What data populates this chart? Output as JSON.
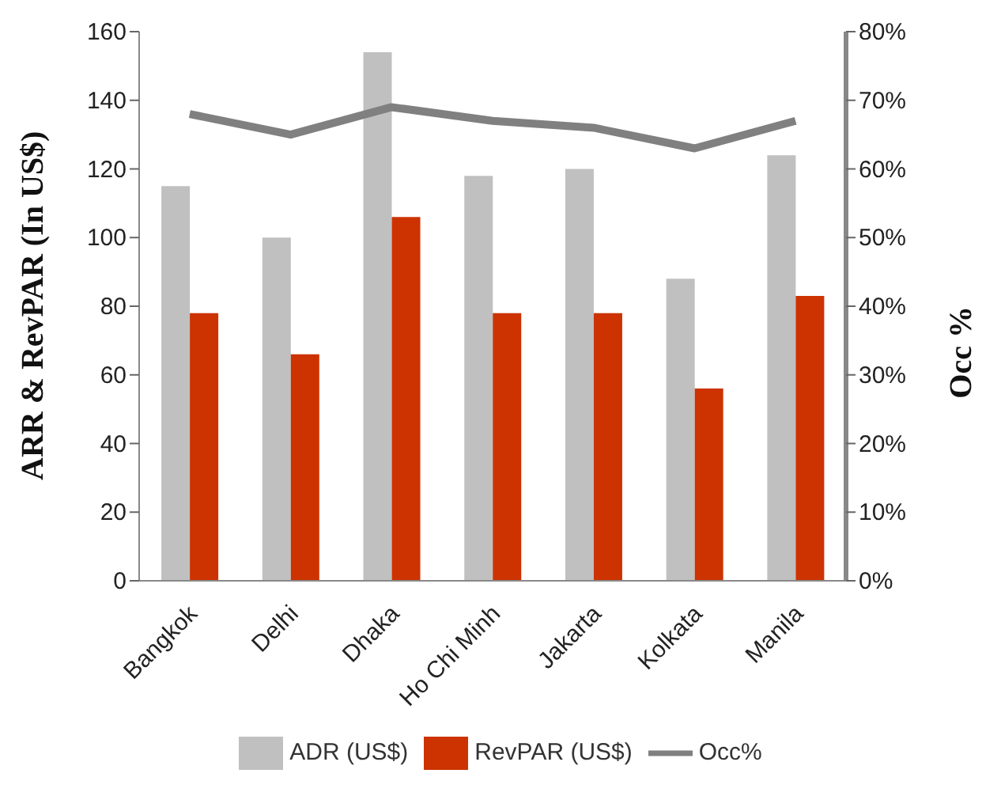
{
  "chart_data": {
    "type": "bar",
    "ylabel": "ARR & RevPAR (In US$)",
    "y2label": "Occ %",
    "categories": [
      "Bangkok",
      "Delhi",
      "Dhaka",
      "Ho Chi Minh",
      "Jakarta",
      "Kolkata",
      "Manila"
    ],
    "series": [
      {
        "name": "ADR (US$)",
        "color": "#c0c0c0",
        "values": [
          115,
          100,
          154,
          118,
          120,
          88,
          124
        ]
      },
      {
        "name": "RevPAR (US$)",
        "color": "#cc3300",
        "values": [
          78,
          66,
          106,
          78,
          78,
          56,
          83
        ]
      },
      {
        "name": "Occ%",
        "type": "line",
        "axis": "y2",
        "color": "#808080",
        "values": [
          68,
          65,
          69,
          67,
          66,
          63,
          67
        ]
      }
    ],
    "ylim": [
      0,
      160
    ],
    "yticks": [
      0,
      20,
      40,
      60,
      80,
      100,
      120,
      140,
      160
    ],
    "y2lim": [
      0,
      80
    ],
    "y2ticks": [
      {
        "value": 0,
        "label": "0%"
      },
      {
        "value": 10,
        "label": "10%"
      },
      {
        "value": 20,
        "label": "20%"
      },
      {
        "value": 30,
        "label": "30%"
      },
      {
        "value": 40,
        "label": "40%"
      },
      {
        "value": 50,
        "label": "50%"
      },
      {
        "value": 60,
        "label": "60%"
      },
      {
        "value": 70,
        "label": "70%"
      },
      {
        "value": 80,
        "label": "80%"
      }
    ],
    "legend": "bottom",
    "marker": "none"
  }
}
